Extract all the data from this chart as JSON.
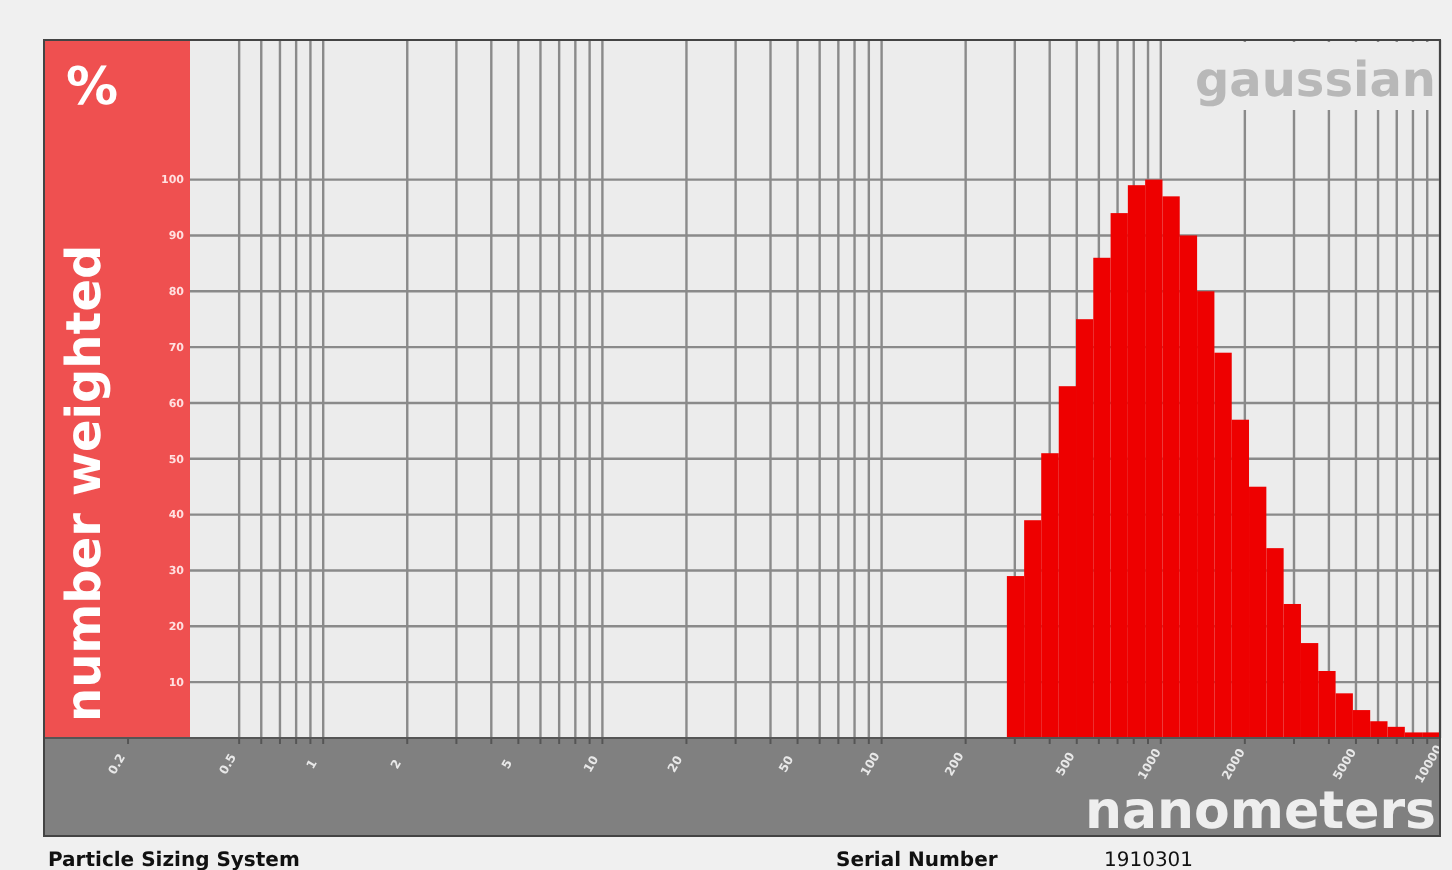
{
  "chart_data": {
    "type": "histogram",
    "title": "gaussian",
    "ylabel": "number weighted",
    "xlabel": "nanometers",
    "annotations": [
      "%",
      "Particle Sizing System",
      "Serial Number",
      "1910301"
    ],
    "log": "x",
    "grid": true,
    "color": "#ee0000",
    "bins": [
      281,
      324,
      373,
      431,
      497,
      573,
      661,
      762,
      879,
      1014,
      1169,
      1349,
      1556,
      1795,
      2070,
      2388,
      2754,
      3177,
      3664,
      4227,
      4875,
      5623,
      6486,
      7482,
      8630,
      10000
    ],
    "values": [
      29,
      39,
      51,
      63,
      75,
      86,
      94,
      99,
      100,
      97,
      90,
      80,
      69,
      57,
      45,
      34,
      24,
      17,
      12,
      8,
      5,
      3,
      2,
      1,
      1
    ],
    "xlim": [
      0.1,
      10000
    ],
    "xticks": [
      {
        "value": 0.2,
        "label": "0.2"
      },
      {
        "value": 0.5,
        "label": "0.5"
      },
      {
        "value": 0.6,
        "label": null
      },
      {
        "value": 0.7,
        "label": null
      },
      {
        "value": 0.8,
        "label": null
      },
      {
        "value": 0.9,
        "label": null
      },
      {
        "value": 1,
        "label": "1"
      },
      {
        "value": 2,
        "label": "2"
      },
      {
        "value": 3,
        "label": null
      },
      {
        "value": 4,
        "label": null
      },
      {
        "value": 5,
        "label": "5"
      },
      {
        "value": 6,
        "label": null
      },
      {
        "value": 7,
        "label": null
      },
      {
        "value": 8,
        "label": null
      },
      {
        "value": 9,
        "label": null
      },
      {
        "value": 10,
        "label": "10"
      },
      {
        "value": 20,
        "label": "20"
      },
      {
        "value": 30,
        "label": null
      },
      {
        "value": 40,
        "label": null
      },
      {
        "value": 50,
        "label": "50"
      },
      {
        "value": 60,
        "label": null
      },
      {
        "value": 70,
        "label": null
      },
      {
        "value": 80,
        "label": null
      },
      {
        "value": 90,
        "label": null
      },
      {
        "value": 100,
        "label": "100"
      },
      {
        "value": 200,
        "label": "200"
      },
      {
        "value": 300,
        "label": null
      },
      {
        "value": 400,
        "label": null
      },
      {
        "value": 500,
        "label": "500"
      },
      {
        "value": 600,
        "label": null
      },
      {
        "value": 700,
        "label": null
      },
      {
        "value": 800,
        "label": null
      },
      {
        "value": 900,
        "label": null
      },
      {
        "value": 1000,
        "label": "1000"
      },
      {
        "value": 2000,
        "label": "2000"
      },
      {
        "value": 3000,
        "label": null
      },
      {
        "value": 4000,
        "label": null
      },
      {
        "value": 5000,
        "label": "5000"
      },
      {
        "value": 6000,
        "label": null
      },
      {
        "value": 7000,
        "label": null
      },
      {
        "value": 8000,
        "label": null
      },
      {
        "value": 9000,
        "label": null
      },
      {
        "value": 10000,
        "label": "10000"
      }
    ],
    "ylim": [
      0,
      125
    ],
    "yticks": [
      10,
      20,
      30,
      40,
      50,
      60,
      70,
      80,
      90,
      100
    ]
  }
}
